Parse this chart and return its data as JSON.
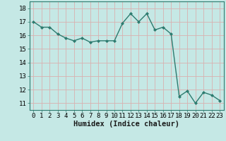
{
  "x": [
    0,
    1,
    2,
    3,
    4,
    5,
    6,
    7,
    8,
    9,
    10,
    11,
    12,
    13,
    14,
    15,
    16,
    17,
    18,
    19,
    20,
    21,
    22,
    23
  ],
  "y": [
    17.0,
    16.6,
    16.6,
    16.1,
    15.8,
    15.6,
    15.8,
    15.5,
    15.6,
    15.6,
    15.6,
    16.9,
    17.6,
    17.0,
    17.6,
    16.4,
    16.6,
    16.1,
    11.5,
    11.9,
    11.0,
    11.8,
    11.6,
    11.2
  ],
  "line_color": "#2d7b6f",
  "marker": "D",
  "marker_size": 2.0,
  "bg_color": "#c5e8e5",
  "grid_color": "#d9b0b0",
  "xlabel": "Humidex (Indice chaleur)",
  "xlabel_fontsize": 7.5,
  "tick_fontsize": 6.5,
  "ylim": [
    10.5,
    18.5
  ],
  "yticks": [
    11,
    12,
    13,
    14,
    15,
    16,
    17,
    18
  ],
  "xticks": [
    0,
    1,
    2,
    3,
    4,
    5,
    6,
    7,
    8,
    9,
    10,
    11,
    12,
    13,
    14,
    15,
    16,
    17,
    18,
    19,
    20,
    21,
    22,
    23
  ]
}
